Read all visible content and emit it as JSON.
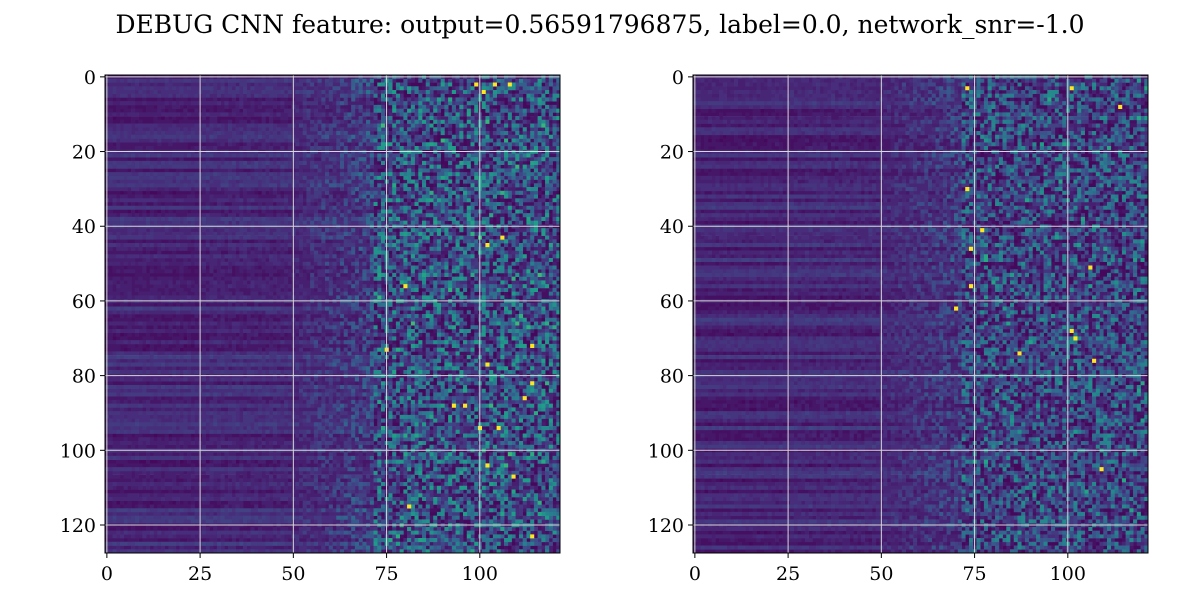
{
  "figure": {
    "title": "DEBUG CNN feature: output=0.56591796875, label=0.0, network_snr=-1.0"
  },
  "colors": {
    "background": "#ffffff",
    "text": "#000000",
    "grid": "#d8d8d8",
    "colormap": "viridis",
    "viridis_stops": [
      "#440154",
      "#482878",
      "#3e4a89",
      "#31688e",
      "#26828e",
      "#1f9e89",
      "#35b779",
      "#6ece58",
      "#b5de2b",
      "#fde725"
    ]
  },
  "chart_data": [
    {
      "type": "heatmap",
      "panel": "left",
      "colormap": "viridis",
      "rows": 128,
      "cols": 122,
      "xlim": [
        -0.5,
        121.5
      ],
      "ylim": [
        127.5,
        -0.5
      ],
      "xticks": [
        0,
        25,
        50,
        75,
        100
      ],
      "yticks": [
        0,
        20,
        40,
        60,
        80,
        100,
        120
      ],
      "grid": true,
      "hot_pixels": [
        [
          2,
          99
        ],
        [
          2,
          104
        ],
        [
          2,
          108
        ],
        [
          4,
          101
        ],
        [
          43,
          106
        ],
        [
          45,
          102
        ],
        [
          56,
          80
        ],
        [
          72,
          114
        ],
        [
          73,
          75
        ],
        [
          77,
          102
        ],
        [
          82,
          114
        ],
        [
          86,
          112
        ],
        [
          88,
          93
        ],
        [
          88,
          96
        ],
        [
          94,
          100
        ],
        [
          94,
          105
        ],
        [
          104,
          102
        ],
        [
          107,
          109
        ],
        [
          115,
          81
        ],
        [
          123,
          114
        ]
      ]
    },
    {
      "type": "heatmap",
      "panel": "right",
      "colormap": "viridis",
      "rows": 128,
      "cols": 122,
      "xlim": [
        -0.5,
        121.5
      ],
      "ylim": [
        127.5,
        -0.5
      ],
      "xticks": [
        0,
        25,
        50,
        75,
        100
      ],
      "yticks": [
        0,
        20,
        40,
        60,
        80,
        100,
        120
      ],
      "grid": true,
      "hot_pixels": [
        [
          3,
          73
        ],
        [
          3,
          101
        ],
        [
          8,
          114
        ],
        [
          30,
          73
        ],
        [
          41,
          77
        ],
        [
          46,
          74
        ],
        [
          51,
          106
        ],
        [
          56,
          74
        ],
        [
          62,
          70
        ],
        [
          68,
          101
        ],
        [
          70,
          102
        ],
        [
          74,
          87
        ],
        [
          76,
          107
        ],
        [
          105,
          109
        ]
      ]
    }
  ]
}
